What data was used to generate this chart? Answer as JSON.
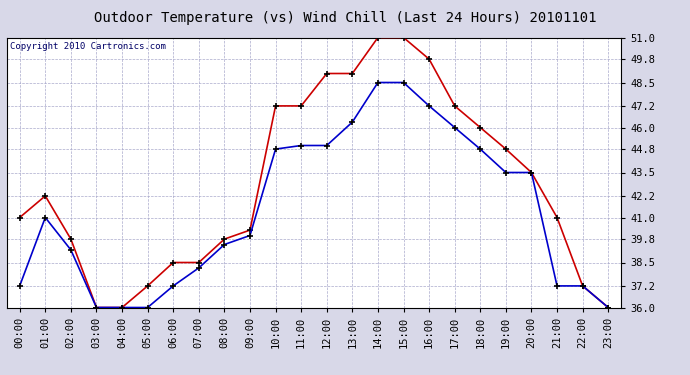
{
  "title": "Outdoor Temperature (vs) Wind Chill (Last 24 Hours) 20101101",
  "copyright": "Copyright 2010 Cartronics.com",
  "hours": [
    "00:00",
    "01:00",
    "02:00",
    "03:00",
    "04:00",
    "05:00",
    "06:00",
    "07:00",
    "08:00",
    "09:00",
    "10:00",
    "11:00",
    "12:00",
    "13:00",
    "14:00",
    "15:00",
    "16:00",
    "17:00",
    "18:00",
    "19:00",
    "20:00",
    "21:00",
    "22:00",
    "23:00"
  ],
  "temp_red": [
    41.0,
    42.2,
    39.8,
    36.0,
    36.0,
    37.2,
    38.5,
    38.5,
    39.8,
    40.3,
    47.2,
    47.2,
    49.0,
    49.0,
    51.0,
    51.0,
    49.8,
    47.2,
    46.0,
    44.8,
    43.5,
    41.0,
    37.2,
    36.0
  ],
  "temp_blue": [
    37.2,
    41.0,
    39.2,
    36.0,
    36.0,
    36.0,
    37.2,
    38.2,
    39.5,
    40.0,
    44.8,
    45.0,
    45.0,
    46.3,
    48.5,
    48.5,
    47.2,
    46.0,
    44.8,
    43.5,
    43.5,
    37.2,
    37.2,
    36.0
  ],
  "ylim_min": 36.0,
  "ylim_max": 51.0,
  "yticks": [
    36.0,
    37.2,
    38.5,
    39.8,
    41.0,
    42.2,
    43.5,
    44.8,
    46.0,
    47.2,
    48.5,
    49.8,
    51.0
  ],
  "red_color": "#cc0000",
  "blue_color": "#0000cc",
  "bg_color": "#d8d8e8",
  "plot_bg": "#ffffff",
  "grid_color": "#aaaacc",
  "title_color": "#000000",
  "copyright_color": "#000066",
  "title_fontsize": 10,
  "tick_fontsize": 7.5,
  "copyright_fontsize": 6.5
}
